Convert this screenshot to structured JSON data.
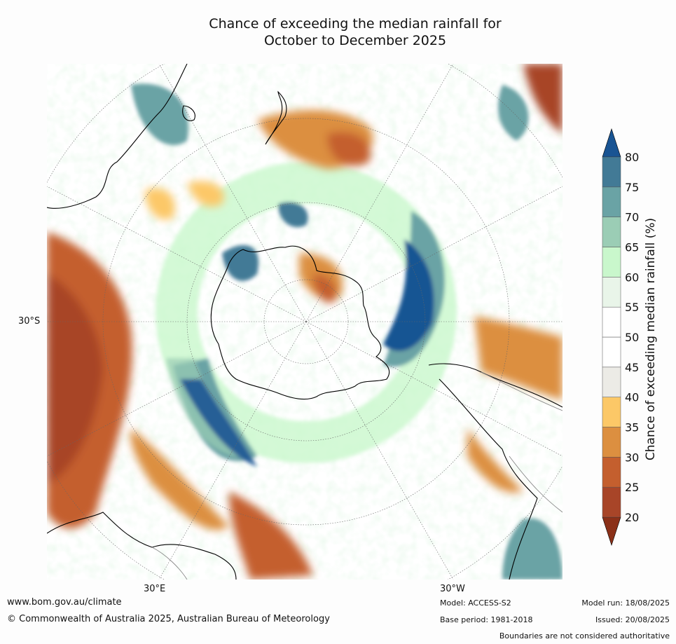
{
  "title": {
    "line1": "Chance of exceeding the median rainfall for",
    "line2": "October to December 2025"
  },
  "map": {
    "projection": "south polar stereographic",
    "lat_label": "30°S",
    "lon_labels": [
      "30°E",
      "30°W"
    ]
  },
  "colorbar": {
    "title": "Chance of exceeding median rainfall (%)",
    "ticks": [
      "20",
      "25",
      "30",
      "35",
      "40",
      "45",
      "50",
      "55",
      "60",
      "65",
      "70",
      "75",
      "80"
    ],
    "colors": [
      "#8b3018",
      "#a84528",
      "#c45f2e",
      "#dc8f40",
      "#fcc867",
      "#ecebe6",
      "#ffffff",
      "#ffffff",
      "#e9f5e9",
      "#c9f7cc",
      "#9bcdb5",
      "#6aa3a5",
      "#427a96",
      "#195493"
    ],
    "extend": "both"
  },
  "footer": {
    "website": "www.bom.gov.au/climate",
    "copyright": "© Commonwealth of Australia 2025, Australian Bureau of Meteorology",
    "model": "Model: ACCESS-S2",
    "base_period": "Base period: 1981-2018",
    "model_run": "Model run: 18/08/2025",
    "issued": "Issued: 20/08/2025",
    "disclaimer": "Boundaries are not considered authoritative"
  }
}
